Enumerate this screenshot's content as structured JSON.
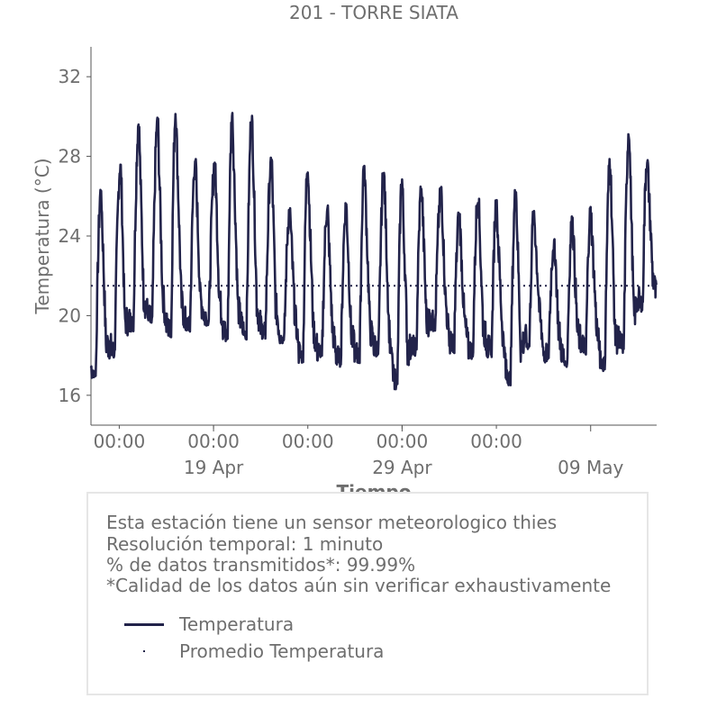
{
  "chart_data": {
    "type": "line",
    "title": "201 - TORRE SIATA",
    "xlabel": "Tiempo",
    "ylabel": "Temperatura (°C)",
    "ylim": [
      14.5,
      33.5
    ],
    "yticks": [
      16,
      20,
      24,
      28,
      32
    ],
    "xlim": [
      "2019-04-12T00:00",
      "2019-05-12T00:00"
    ],
    "x_minor_labels": [
      "00:00",
      "00:00",
      "00:00",
      "00:00",
      "00:00"
    ],
    "x_major_labels": [
      "19 Apr",
      "29 Apr",
      "09 May"
    ],
    "grid": false,
    "series": [
      {
        "name": "Temperatura",
        "color": "#22234a",
        "style": "solid",
        "daily_min": [
          16.8,
          17.9,
          19.2,
          19.5,
          18.9,
          19.1,
          19.5,
          18.7,
          18.8,
          18.8,
          18.6,
          17.6,
          17.7,
          17.4,
          17.6,
          17.9,
          16.3,
          17.9,
          19.2,
          18.1,
          17.8,
          17.9,
          16.5,
          18.3,
          17.6,
          17.4,
          18.0,
          17.2,
          18.1,
          20.2
        ],
        "daily_max": [
          26.4,
          27.8,
          29.8,
          30.0,
          30.4,
          28.0,
          27.8,
          30.2,
          30.3,
          28.0,
          25.5,
          27.8,
          25.6,
          25.8,
          27.8,
          27.4,
          27.0,
          26.6,
          26.5,
          25.2,
          26.2,
          25.8,
          26.4,
          25.3,
          24.0,
          25.0,
          25.5,
          28.0,
          29.5,
          28.0
        ],
        "daily_max_hour": [
          13,
          14,
          13,
          13,
          12,
          13,
          14,
          12,
          13,
          14,
          13,
          12,
          13,
          13,
          12,
          13,
          12,
          13,
          14,
          13,
          13,
          12,
          13,
          12,
          14,
          13,
          12,
          13,
          13,
          12
        ]
      },
      {
        "name": "Promedio Temperatura",
        "color": "#22234a",
        "style": "dotted",
        "value": 21.5
      }
    ]
  },
  "info": {
    "line1": "Esta estación tiene un sensor meteorologico thies",
    "line2": "Resolución temporal: 1 minuto",
    "line3": "% de datos transmitidos*: 99.99%",
    "line4": "*Calidad de los datos aún sin verificar exhaustivamente"
  },
  "legend": {
    "temperatura": "Temperatura",
    "promedio": "Promedio Temperatura"
  }
}
